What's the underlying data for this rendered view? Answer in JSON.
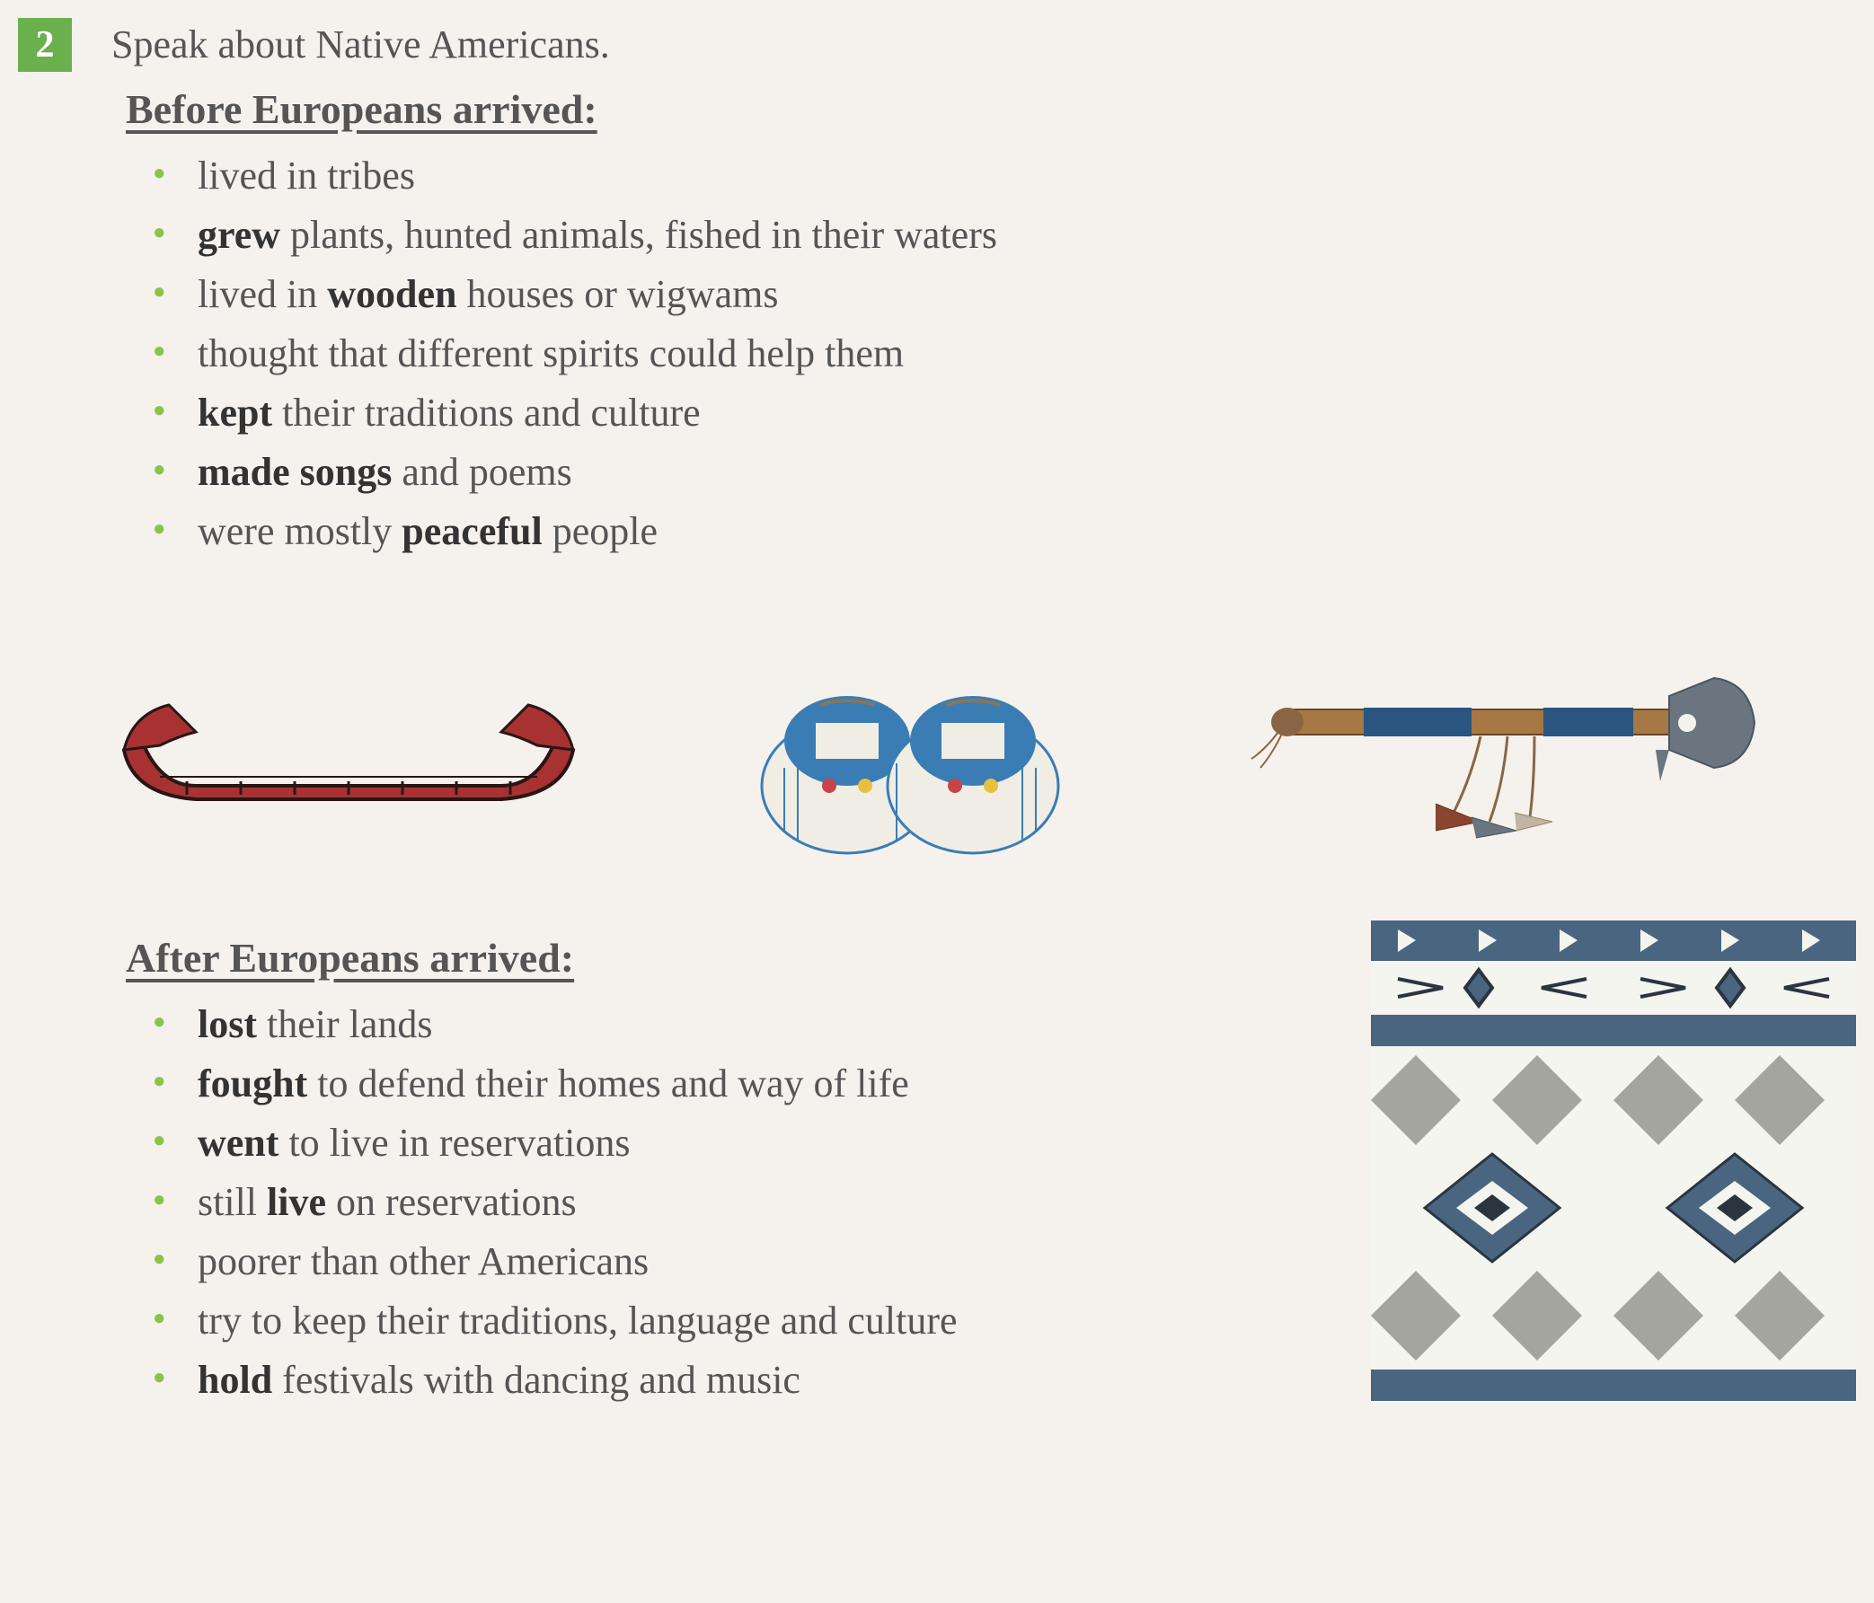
{
  "exercise_number": "2",
  "instruction": "Speak about Native Americans.",
  "section1": {
    "heading": "Before Europeans arrived:",
    "items": [
      {
        "text": "lived in tribes"
      },
      {
        "bold": "grew",
        "text": " plants, hunted animals, fished in their waters"
      },
      {
        "text": "lived in ",
        "bold": "wooden",
        "text2": " houses or wigwams"
      },
      {
        "text": "thought that different spirits could help them"
      },
      {
        "bold": "kept",
        "text": " their traditions and culture"
      },
      {
        "bold": "made songs",
        "text": " and poems"
      },
      {
        "text": "were mostly ",
        "bold": "peaceful",
        "text2": " people"
      }
    ]
  },
  "section2": {
    "heading": "After Europeans arrived:",
    "items": [
      {
        "bold": "lost",
        "text": " their lands"
      },
      {
        "bold": "fought",
        "text": " to defend their homes and way of life"
      },
      {
        "bold": "went",
        "text": " to live in reservations"
      },
      {
        "text": "still ",
        "bold": "live",
        "text2": " on reservations"
      },
      {
        "text": "poorer than other Americans"
      },
      {
        "text": "try to keep their traditions, language and culture"
      },
      {
        "bold": "hold",
        "text": " festivals with dancing and music"
      }
    ]
  },
  "colors": {
    "bullet": "#8bc34a",
    "number_bg": "#6ab04c",
    "text": "#555555",
    "bold": "#333333",
    "canoe_red": "#a83232",
    "canoe_dark": "#2a1515",
    "moccasin_blue": "#3a7db5",
    "moccasin_white": "#f0ede5",
    "moccasin_red": "#c94545",
    "tomahawk_handle": "#a57845",
    "tomahawk_blue": "#2a5580",
    "tomahawk_blade": "#6a7580",
    "pattern_blue": "#4a6580",
    "pattern_white": "#f5f5f0",
    "pattern_gray": "#a5a5a0",
    "pattern_dark": "#2a3540"
  }
}
